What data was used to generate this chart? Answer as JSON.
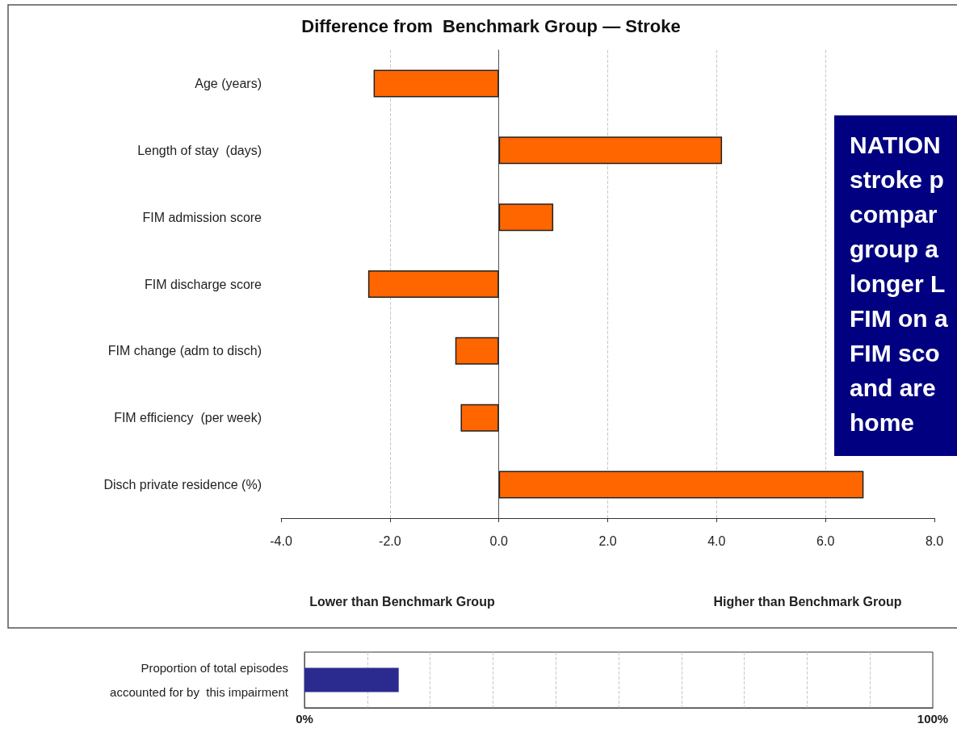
{
  "chart_data": [
    {
      "type": "bar",
      "orientation": "horizontal",
      "title": "Difference from  Benchmark Group — Stroke",
      "categories": [
        "Age (years)",
        "Length of stay  (days)",
        "FIM admission score",
        "FIM discharge score",
        "FIM change (adm to disch)",
        "FIM efficiency  (per week)",
        "Disch private residence (%)"
      ],
      "values": [
        -2.3,
        4.1,
        1.0,
        -2.4,
        -0.8,
        -0.7,
        6.7
      ],
      "color": "#ff6600",
      "xlim": [
        -4,
        8
      ],
      "xticks": [
        {
          "value": -4,
          "label": "-4.0"
        },
        {
          "value": -2,
          "label": "-2.0"
        },
        {
          "value": 0,
          "label": "0.0"
        },
        {
          "value": 2,
          "label": "2.0"
        },
        {
          "value": 4,
          "label": "4.0"
        },
        {
          "value": 6,
          "label": "6.0"
        },
        {
          "value": 8,
          "label": "8.0"
        }
      ],
      "grid": "x",
      "annotations": [
        "Lower than Benchmark Group",
        "Higher than Benchmark Group",
        "NATION\nstroke p\ncompar\ngroup a\nlonger L\nFIM on a\nFIM sco\nand are\nhome"
      ]
    },
    {
      "type": "bar",
      "orientation": "horizontal",
      "categories": [
        "Proportion of total episodes\naccounted for by  this impairment"
      ],
      "values": [
        15
      ],
      "color": "#2b2b8f",
      "xlim": [
        0,
        100
      ],
      "xticks": [
        {
          "value": 0,
          "label": "0%"
        },
        {
          "value": 10,
          "label": null
        },
        {
          "value": 20,
          "label": null
        },
        {
          "value": 30,
          "label": null
        },
        {
          "value": 40,
          "label": null
        },
        {
          "value": 50,
          "label": null
        },
        {
          "value": 60,
          "label": null
        },
        {
          "value": 70,
          "label": null
        },
        {
          "value": 80,
          "label": null
        },
        {
          "value": 90,
          "label": null
        },
        {
          "value": 100,
          "label": "100%"
        }
      ],
      "grid": "x"
    }
  ]
}
